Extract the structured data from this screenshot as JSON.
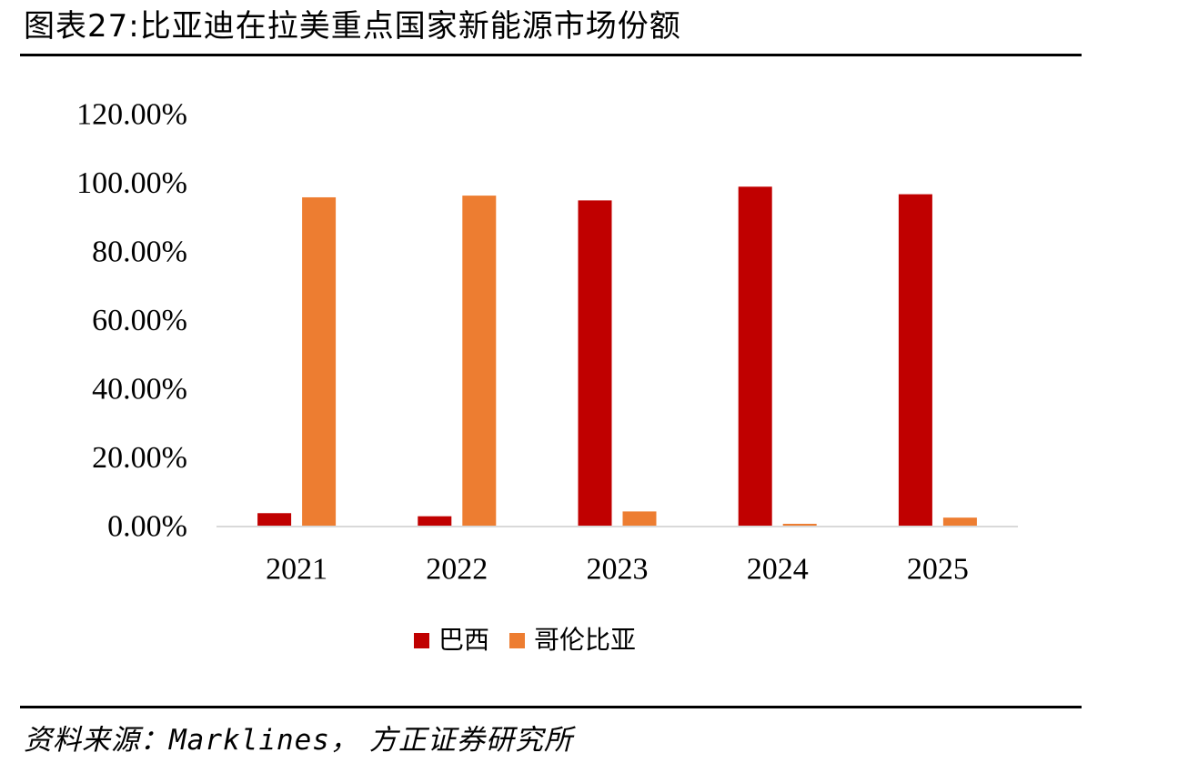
{
  "figure": {
    "title": "图表27:比亚迪在拉美重点国家新能源市场份额",
    "source_prefix": "资料来源：",
    "source_name": "Marklines",
    "source_suffix": "， 方正证券研究所"
  },
  "chart_data": {
    "type": "bar",
    "categories": [
      "2021",
      "2022",
      "2023",
      "2024",
      "2025"
    ],
    "series": [
      {
        "name": "巴西",
        "color": "#C00000",
        "values": [
          3.9,
          3.0,
          95.0,
          99.0,
          96.8
        ]
      },
      {
        "name": "哥伦比亚",
        "color": "#ED7D31",
        "values": [
          95.9,
          96.4,
          4.4,
          0.8,
          2.6
        ]
      }
    ],
    "ylim": [
      0,
      120
    ],
    "yticks": [
      0,
      20,
      40,
      60,
      80,
      100,
      120
    ],
    "ytick_labels": [
      "0.00%",
      "20.00%",
      "40.00%",
      "60.00%",
      "80.00%",
      "100.00%",
      "120.00%"
    ],
    "xlabel": "",
    "ylabel": "",
    "grid": false,
    "legend_position": "bottom"
  }
}
